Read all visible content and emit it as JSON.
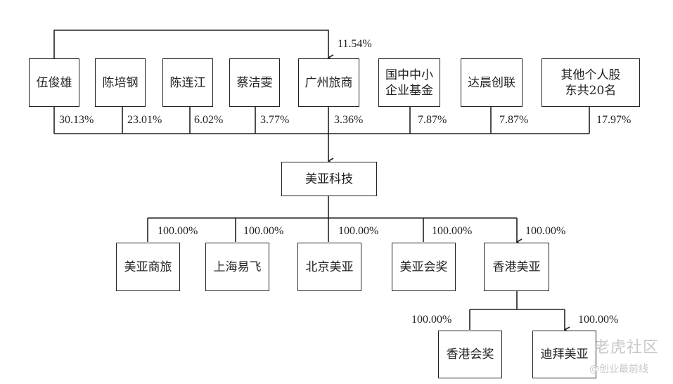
{
  "shareholders": [
    {
      "name": "伍俊雄",
      "pct": "30.13%"
    },
    {
      "name": "陈培钢",
      "pct": "23.01%"
    },
    {
      "name": "陈连江",
      "pct": "6.02%"
    },
    {
      "name": "蔡洁雯",
      "pct": "3.77%"
    },
    {
      "name": "广州旅商",
      "pct": "3.36%"
    },
    {
      "name": "国中中小企业基金",
      "pct": "7.87%"
    },
    {
      "name": "达晨创联",
      "pct": "7.87%"
    },
    {
      "name": "其他个人股东共20名",
      "pct": "17.97%"
    }
  ],
  "indirect": {
    "from": "伍俊雄",
    "to": "广州旅商",
    "pct": "11.54%"
  },
  "company": "美亚科技",
  "subsidiaries": [
    {
      "name": "美亚商旅",
      "pct": "100.00%"
    },
    {
      "name": "上海易飞",
      "pct": "100.00%"
    },
    {
      "name": "北京美亚",
      "pct": "100.00%"
    },
    {
      "name": "美亚会奖",
      "pct": "100.00%"
    },
    {
      "name": "香港美亚",
      "pct": "100.00%"
    }
  ],
  "hk_subsidiaries": [
    {
      "name": "香港会奖",
      "pct": "100.00%"
    },
    {
      "name": "迪拜美亚",
      "pct": "100.00%"
    }
  ],
  "watermark": {
    "brand": "老虎社区",
    "author": "@创业最前线"
  }
}
